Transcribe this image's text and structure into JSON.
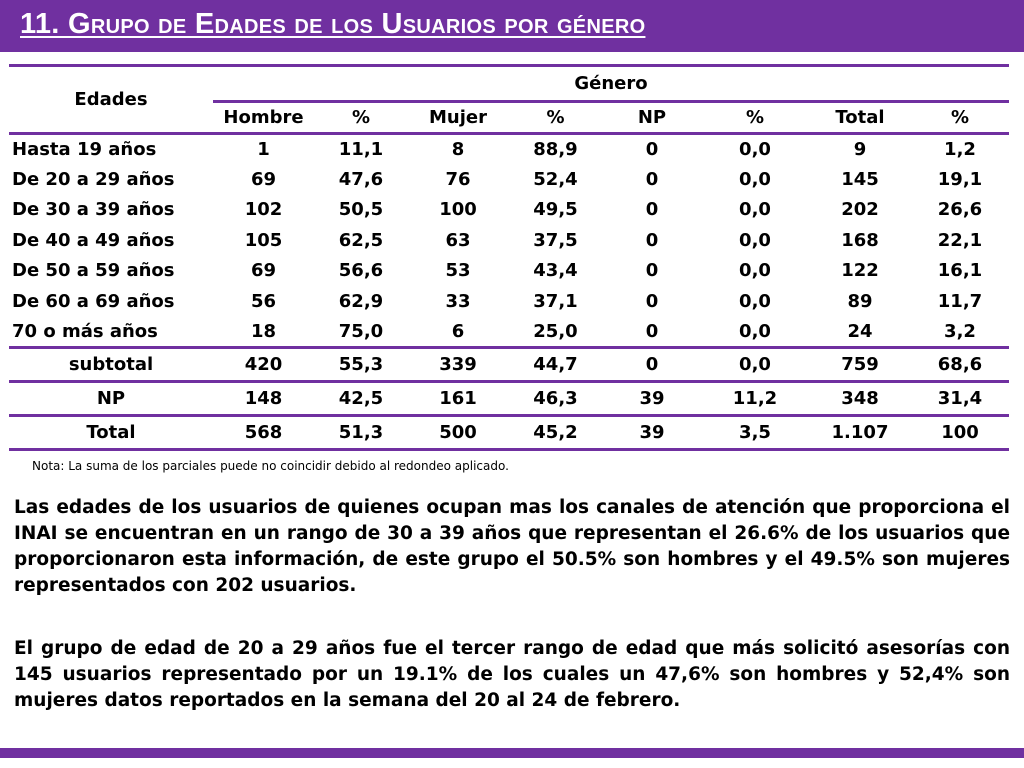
{
  "title": "11. Grupo de  Edades de los Usuarios por género",
  "table": {
    "col_edades": "Edades",
    "col_genero": "Género",
    "subheaders": [
      "Hombre",
      "%",
      "Mujer",
      "%",
      "NP",
      "%",
      "Total",
      "%"
    ],
    "rows": [
      [
        "Hasta 19 años",
        "1",
        "11,1",
        "8",
        "88,9",
        "0",
        "0,0",
        "9",
        "1,2"
      ],
      [
        "De 20 a 29 años",
        "69",
        "47,6",
        "76",
        "52,4",
        "0",
        "0,0",
        "145",
        "19,1"
      ],
      [
        "De 30 a 39 años",
        "102",
        "50,5",
        "100",
        "49,5",
        "0",
        "0,0",
        "202",
        "26,6"
      ],
      [
        "De 40 a 49 años",
        "105",
        "62,5",
        "63",
        "37,5",
        "0",
        "0,0",
        "168",
        "22,1"
      ],
      [
        "De 50 a 59 años",
        "69",
        "56,6",
        "53",
        "43,4",
        "0",
        "0,0",
        "122",
        "16,1"
      ],
      [
        "De 60 a 69 años",
        "56",
        "62,9",
        "33",
        "37,1",
        "0",
        "0,0",
        "89",
        "11,7"
      ],
      [
        "70 o más años",
        "18",
        "75,0",
        "6",
        "25,0",
        "0",
        "0,0",
        "24",
        "3,2"
      ]
    ],
    "summary_rows": [
      [
        "subtotal",
        "420",
        "55,3",
        "339",
        "44,7",
        "0",
        "0,0",
        "759",
        "68,6"
      ],
      [
        "NP",
        "148",
        "42,5",
        "161",
        "46,3",
        "39",
        "11,2",
        "348",
        "31,4"
      ],
      [
        "Total",
        "568",
        "51,3",
        "500",
        "45,2",
        "39",
        "3,5",
        "1.107",
        "100"
      ]
    ]
  },
  "note": "Nota: La suma de los parciales puede no coincidir debido al redondeo aplicado.",
  "paragraph_1": "Las edades de los usuarios de quienes ocupan mas los canales de atención que proporciona el INAI se encuentran en un rango de 30 a 39 años que representan el 26.6% de los usuarios que proporcionaron esta información, de este grupo el 50.5% son hombres y el 49.5% son mujeres representados con 202 usuarios.",
  "paragraph_2": "El grupo de edad de 20 a 29 años fue el tercer rango de edad que más solicitó asesorías con 145 usuarios representado por un 19.1% de los cuales un 47,6%  son hombres y 52,4% son mujeres datos reportados en la semana del 20 al 24 de febrero.",
  "colors": {
    "accent": "#7030a0",
    "text": "#000000",
    "background": "#ffffff"
  }
}
